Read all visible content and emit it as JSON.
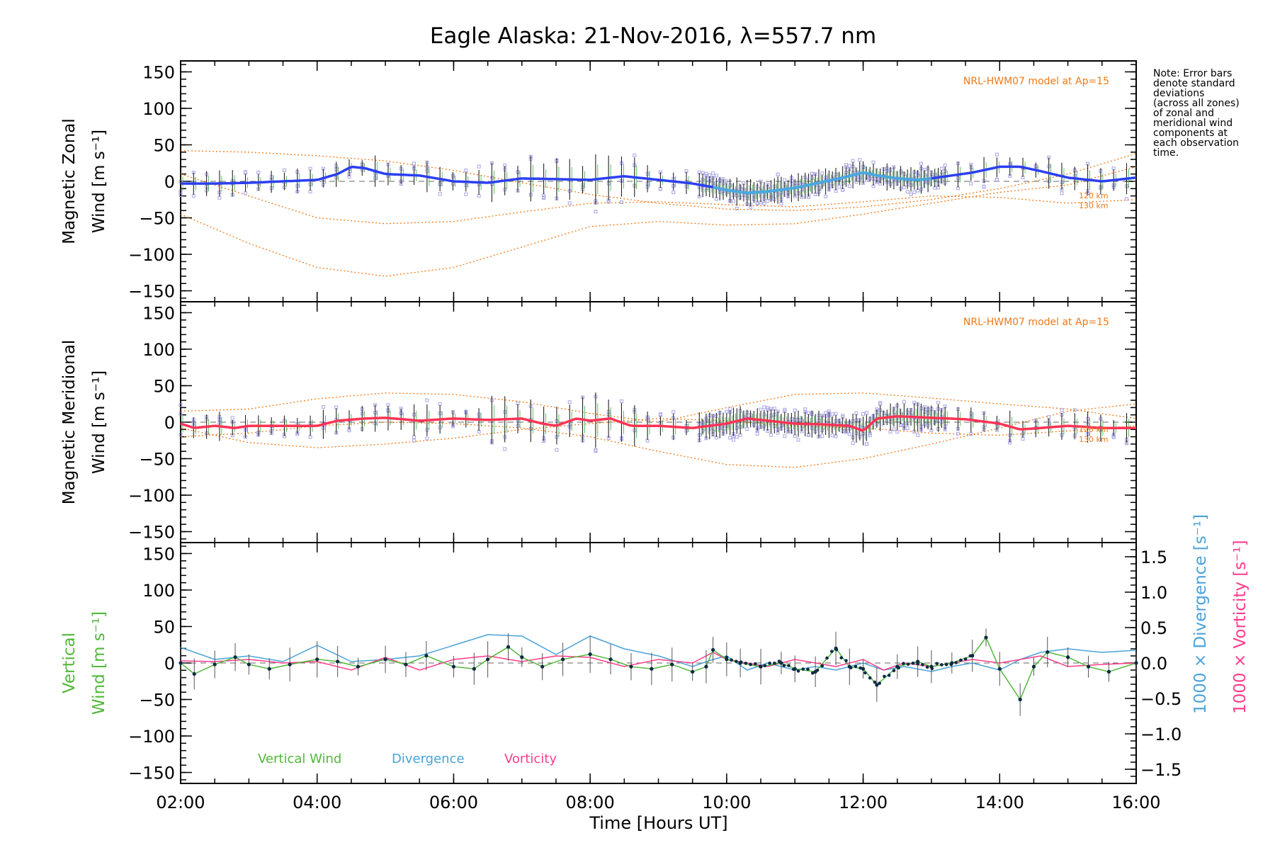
{
  "title": "Eagle Alaska: 21-Nov-2016, λ=557.7 nm",
  "xlabel": "Time [Hours UT]",
  "x_ticks": [
    "02:00",
    "04:00",
    "06:00",
    "08:00",
    "10:00",
    "12:00",
    "14:00",
    "16:00"
  ],
  "y_ticks": [
    "150",
    "100",
    "50",
    "0",
    "−50",
    "−100",
    "−150"
  ],
  "right_ticks": [
    "1.5",
    "1.0",
    "0.5",
    "0.0",
    "−0.5",
    "−1.0",
    "−1.5"
  ],
  "note": [
    "Note: Error bars",
    "denote standard",
    "deviations",
    "(across all zones)",
    "of zonal and",
    "meridional wind",
    "components at",
    "each observation",
    "time."
  ],
  "model_label": "NRL-HWM07 model at Ap=15",
  "alt_labels": [
    "120 km",
    "130 km"
  ],
  "panels": {
    "zonal": {
      "ylabel_line1": "Magnetic Zonal",
      "ylabel_line2": "Wind [m s⁻¹]"
    },
    "meridional": {
      "ylabel_line1": "Magnetic Meridional",
      "ylabel_line2": "Wind [m s⁻¹]"
    },
    "vertical": {
      "ylabel_line1": "Vertical",
      "ylabel_line2": "Wind [m s⁻¹]",
      "right_label_div": "1000 × Divergence [s⁻¹]",
      "right_label_vort": "1000 × Vorticity [s⁻¹]"
    }
  },
  "legend": [
    "Vertical Wind",
    "Divergence",
    "Vorticity"
  ],
  "colors": {
    "zonal": "#2b3ff0",
    "zonal_dense": "#4aa8e0",
    "meridional": "#ff3355",
    "model": "#ee7a18",
    "vertical": "#52b83a",
    "divergence": "#4aa3d8",
    "vorticity": "#ff3c8a",
    "samples": "#a9a6e6"
  },
  "chart_data": [
    {
      "type": "line",
      "title": "Eagle Alaska: 21-Nov-2016, λ=557.7 nm",
      "ylabel": "Magnetic Zonal Wind [m s⁻¹]",
      "xlim": [
        2,
        16
      ],
      "ylim": [
        -165,
        165
      ],
      "series": [
        {
          "name": "zonal",
          "x": [
            2.0,
            2.5,
            3.0,
            3.5,
            4.0,
            4.3,
            4.5,
            4.7,
            5.0,
            5.5,
            6.0,
            6.5,
            7.0,
            7.5,
            8.0,
            8.5,
            9.0,
            9.5,
            9.8,
            10.0,
            10.3,
            10.6,
            11.0,
            11.3,
            11.7,
            12.0,
            12.2,
            12.5,
            12.8,
            13.0,
            13.3,
            13.6,
            14.0,
            14.3,
            14.6,
            15.0,
            15.5,
            16.0
          ],
          "y": [
            -3,
            -3,
            -2,
            0,
            2,
            10,
            20,
            18,
            10,
            8,
            0,
            -2,
            4,
            3,
            2,
            7,
            2,
            -3,
            -8,
            -12,
            -16,
            -14,
            -9,
            -3,
            5,
            12,
            8,
            4,
            2,
            4,
            8,
            12,
            20,
            20,
            14,
            5,
            0,
            5
          ]
        },
        {
          "name": "model 120 km",
          "x": [
            2,
            3,
            4,
            5,
            6,
            7,
            8,
            9,
            10,
            11,
            12,
            13,
            14,
            15,
            16
          ],
          "y": [
            42,
            40,
            35,
            28,
            15,
            -2,
            -18,
            -30,
            -38,
            -40,
            -35,
            -25,
            -10,
            10,
            38
          ]
        },
        {
          "name": "model 130 km",
          "x": [
            2,
            3,
            4,
            5,
            6,
            7,
            8,
            9,
            10,
            11,
            12,
            13,
            14,
            15,
            16
          ],
          "y": [
            -45,
            -85,
            -118,
            -130,
            -118,
            -90,
            -62,
            -55,
            -60,
            -58,
            -45,
            -30,
            -15,
            -5,
            20
          ]
        },
        {
          "name": "model 3",
          "x": [
            2,
            3,
            4,
            5,
            6,
            7,
            8,
            9,
            10,
            11,
            12,
            13,
            14,
            15,
            16
          ],
          "y": [
            10,
            -20,
            -50,
            -58,
            -55,
            -42,
            -30,
            -28,
            -32,
            -35,
            -28,
            -20,
            -22,
            -30,
            -25
          ]
        }
      ]
    },
    {
      "type": "line",
      "ylabel": "Magnetic Meridional Wind [m s⁻¹]",
      "xlim": [
        2,
        16
      ],
      "ylim": [
        -165,
        165
      ],
      "series": [
        {
          "name": "meridional",
          "x": [
            2.0,
            2.2,
            2.5,
            2.8,
            3.0,
            3.5,
            4.0,
            4.3,
            4.7,
            5.0,
            5.5,
            6.0,
            6.5,
            7.0,
            7.3,
            7.5,
            7.8,
            8.0,
            8.3,
            8.6,
            9.0,
            9.5,
            10.0,
            10.3,
            10.6,
            11.0,
            11.4,
            11.8,
            12.0,
            12.2,
            12.5,
            13.0,
            13.5,
            14.0,
            14.3,
            14.6,
            15.0,
            15.5,
            16.0
          ],
          "y": [
            -2,
            -8,
            -5,
            -8,
            -5,
            -5,
            -5,
            2,
            5,
            6,
            2,
            5,
            3,
            5,
            -2,
            -5,
            5,
            2,
            5,
            -5,
            -5,
            -8,
            -2,
            5,
            2,
            -2,
            -3,
            -5,
            -12,
            5,
            8,
            6,
            4,
            -2,
            -10,
            -8,
            -5,
            -8,
            -8
          ]
        },
        {
          "name": "model a",
          "x": [
            2,
            3,
            4,
            5,
            6,
            7,
            8,
            9,
            10,
            11,
            12,
            13,
            14,
            15,
            16
          ],
          "y": [
            -20,
            -15,
            -5,
            0,
            -2,
            -8,
            -20,
            -40,
            -58,
            -62,
            -50,
            -30,
            -8,
            15,
            25
          ]
        },
        {
          "name": "model b",
          "x": [
            2,
            3,
            4,
            5,
            6,
            7,
            8,
            9,
            10,
            11,
            12,
            13,
            14,
            15,
            16
          ],
          "y": [
            15,
            18,
            32,
            40,
            38,
            28,
            12,
            0,
            20,
            38,
            40,
            33,
            25,
            18,
            5
          ]
        },
        {
          "name": "model c",
          "x": [
            2,
            3,
            4,
            5,
            6,
            7,
            8,
            9,
            10,
            11,
            12,
            13,
            14,
            15,
            16
          ],
          "y": [
            -8,
            -28,
            -35,
            -30,
            -22,
            -10,
            -2,
            5,
            2,
            -5,
            -8,
            -15,
            -18,
            -12,
            -5
          ]
        }
      ]
    },
    {
      "type": "line",
      "ylabel": "Vertical Wind [m s⁻¹]",
      "xlim": [
        2,
        16
      ],
      "ylim": [
        -165,
        165
      ],
      "right_ylim": [
        -1.7,
        1.7
      ],
      "series": [
        {
          "name": "Vertical Wind",
          "x": [
            2.0,
            2.2,
            2.5,
            2.8,
            3.0,
            3.3,
            3.6,
            4.0,
            4.3,
            4.6,
            5.0,
            5.3,
            5.6,
            6.0,
            6.3,
            6.5,
            6.8,
            7.0,
            7.3,
            7.6,
            8.0,
            8.3,
            8.6,
            8.9,
            9.2,
            9.5,
            9.7,
            9.8,
            10.0,
            10.2,
            10.5,
            10.8,
            11.0,
            11.3,
            11.6,
            11.8,
            12.0,
            12.2,
            12.5,
            12.8,
            13.0,
            13.3,
            13.6,
            13.8,
            14.0,
            14.3,
            14.5,
            14.7,
            15.0,
            15.3,
            15.6,
            16.0
          ],
          "y": [
            0,
            -15,
            -2,
            8,
            -2,
            -8,
            -2,
            5,
            2,
            -5,
            5,
            -2,
            10,
            -5,
            -8,
            5,
            22,
            8,
            -5,
            5,
            12,
            5,
            -5,
            -8,
            -2,
            -12,
            -5,
            18,
            5,
            0,
            -5,
            0,
            -8,
            -12,
            20,
            -5,
            -8,
            -30,
            -5,
            2,
            -5,
            0,
            10,
            35,
            -8,
            -50,
            -5,
            15,
            8,
            -5,
            -12,
            0
          ]
        },
        {
          "name": "Divergence",
          "x": [
            2.0,
            2.5,
            3.0,
            3.5,
            4.0,
            4.5,
            5.0,
            5.5,
            6.0,
            6.5,
            7.0,
            7.5,
            8.0,
            8.5,
            9.0,
            9.5,
            9.8,
            10.0,
            10.3,
            10.6,
            11.0,
            11.3,
            11.6,
            12.0,
            12.3,
            12.6,
            13.0,
            13.3,
            13.6,
            14.0,
            14.3,
            14.6,
            15.0,
            15.5,
            16.0
          ],
          "y": [
            0.22,
            0.05,
            0.1,
            0.02,
            0.25,
            0.02,
            0.05,
            0.1,
            0.25,
            0.4,
            0.38,
            0.12,
            0.38,
            0.2,
            0.1,
            -0.05,
            0.05,
            0.1,
            -0.1,
            0.0,
            -0.1,
            -0.05,
            -0.1,
            0.0,
            -0.1,
            -0.05,
            -0.12,
            -0.05,
            0.0,
            -0.1,
            0.05,
            0.15,
            0.2,
            0.15,
            0.18
          ]
        },
        {
          "name": "Vorticity",
          "x": [
            2.0,
            2.5,
            3.0,
            3.5,
            4.0,
            4.5,
            5.0,
            5.5,
            6.0,
            6.5,
            7.0,
            7.5,
            8.0,
            8.5,
            9.0,
            9.5,
            9.8,
            10.0,
            10.3,
            10.6,
            11.0,
            11.3,
            11.6,
            12.0,
            12.3,
            12.6,
            13.0,
            13.3,
            13.6,
            14.0,
            14.3,
            14.6,
            15.0,
            15.5,
            16.0
          ],
          "y": [
            0.03,
            0.02,
            0.05,
            0.0,
            0.02,
            -0.1,
            0.08,
            -0.1,
            0.05,
            0.1,
            0.02,
            0.1,
            0.08,
            -0.05,
            0.05,
            0.0,
            0.15,
            0.05,
            0.0,
            -0.05,
            0.05,
            0.0,
            -0.05,
            0.05,
            -0.1,
            0.0,
            -0.05,
            0.0,
            0.05,
            0.0,
            0.05,
            0.1,
            -0.05,
            -0.02,
            0.0
          ]
        }
      ]
    }
  ]
}
